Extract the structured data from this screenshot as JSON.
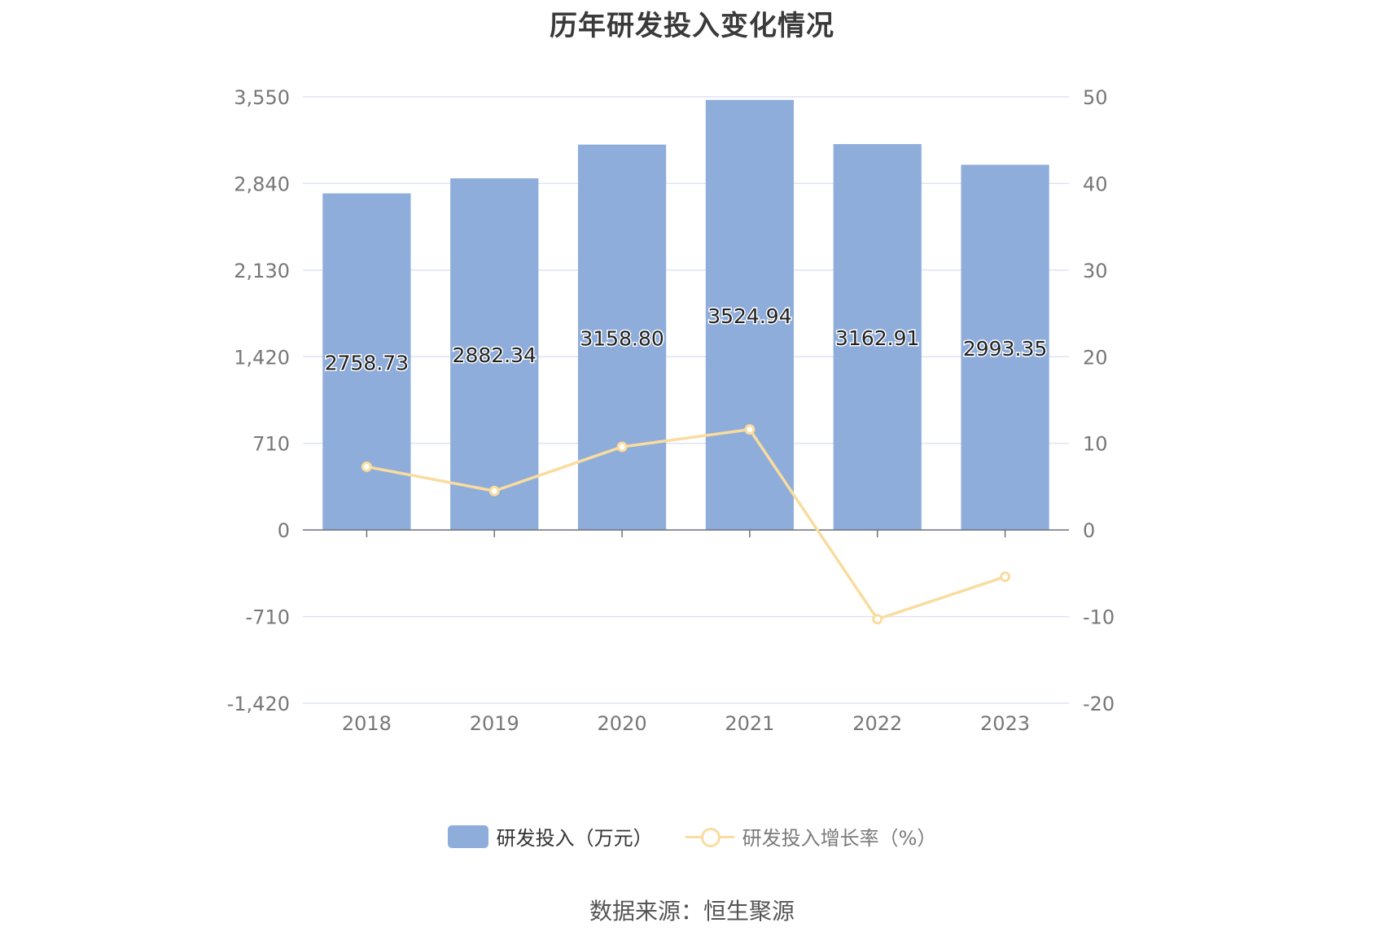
{
  "chart_data": {
    "type": "bar",
    "title": "历年研发投入变化情况",
    "categories": [
      "2018",
      "2019",
      "2020",
      "2021",
      "2022",
      "2023"
    ],
    "series": [
      {
        "name": "研发投入（万元）",
        "type": "bar",
        "axis": "left",
        "values": [
          2758.73,
          2882.34,
          3158.8,
          3524.94,
          3162.91,
          2993.35
        ],
        "labels": [
          "2758.73",
          "2882.34",
          "3158.80",
          "3524.94",
          "3162.91",
          "2993.35"
        ],
        "color": "#8eadda"
      },
      {
        "name": "研发投入增长率（%）",
        "type": "line",
        "axis": "right",
        "values": [
          7.3,
          4.5,
          9.6,
          11.6,
          -10.3,
          -5.4
        ],
        "color": "#f9dc9e"
      }
    ],
    "y_left": {
      "range": [
        -1420,
        3550
      ],
      "ticks": [
        -1420,
        -710,
        0,
        710,
        1420,
        2130,
        2840,
        3550
      ],
      "tick_labels": [
        "-1,420",
        "-710",
        "0",
        "710",
        "1,420",
        "2,130",
        "2,840",
        "3,550"
      ]
    },
    "y_right": {
      "range": [
        -20,
        50
      ],
      "ticks": [
        -20,
        -10,
        0,
        10,
        20,
        30,
        40,
        50
      ],
      "tick_labels": [
        "-20",
        "-10",
        "0",
        "10",
        "20",
        "30",
        "40",
        "50"
      ]
    },
    "grid": true,
    "legend_position": "bottom",
    "source": "数据来源：恒生聚源"
  }
}
